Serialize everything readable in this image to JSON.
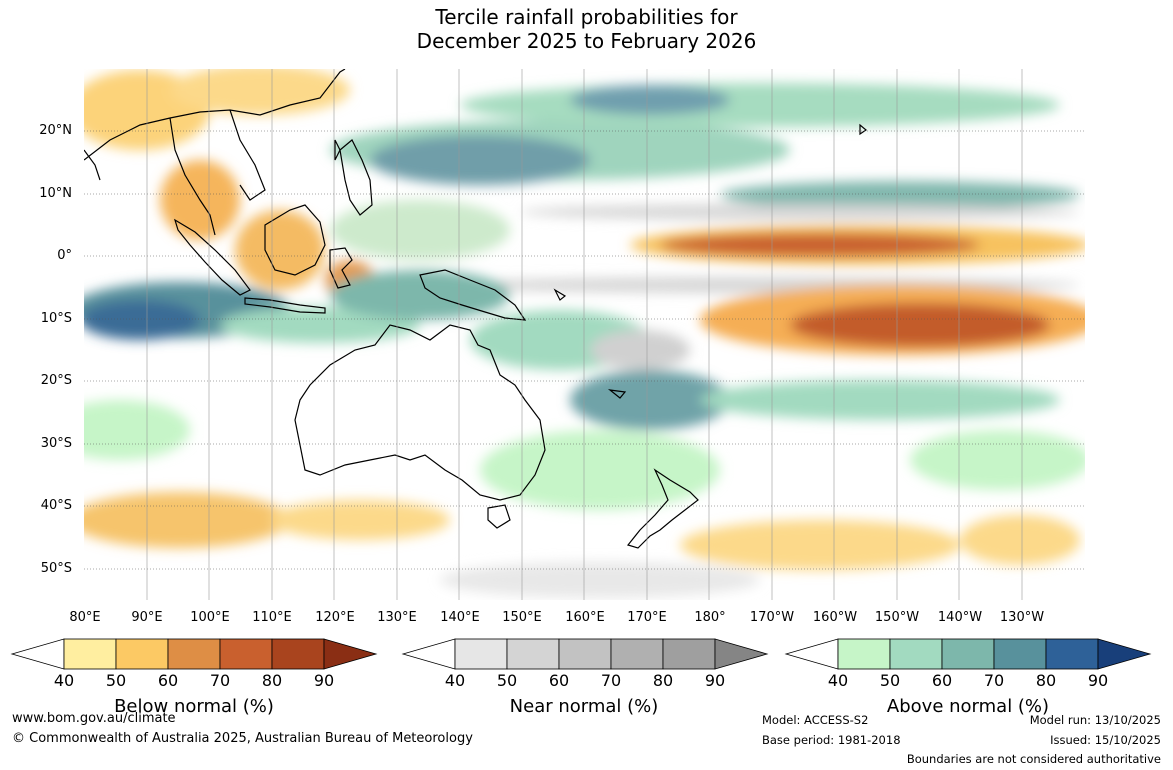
{
  "title": {
    "line1": "Tercile rainfall probabilities for",
    "line2": "December 2025 to February 2026"
  },
  "map": {
    "lat_labels": [
      "20°N",
      "10°N",
      "0°",
      "10°S",
      "20°S",
      "30°S",
      "40°S",
      "50°S"
    ],
    "lon_labels": [
      "80°E",
      "90°E",
      "100°E",
      "110°E",
      "120°E",
      "130°E",
      "140°E",
      "150°E",
      "160°E",
      "170°E",
      "180°",
      "170°W",
      "160°W",
      "150°W",
      "140°W",
      "130°W"
    ]
  },
  "legends": [
    {
      "label": "Below normal (%)",
      "ticks": [
        "40",
        "50",
        "60",
        "70",
        "80",
        "90"
      ],
      "colors": [
        "#ffeea0",
        "#fcc964",
        "#de8e45",
        "#c9602e",
        "#a9441e",
        "#8a2e14"
      ]
    },
    {
      "label": "Near normal (%)",
      "ticks": [
        "40",
        "50",
        "60",
        "70",
        "80",
        "90"
      ],
      "colors": [
        "#e6e6e6",
        "#d4d4d4",
        "#c2c2c2",
        "#b0b0b0",
        "#9f9f9f",
        "#858585"
      ]
    },
    {
      "label": "Above normal (%)",
      "ticks": [
        "40",
        "50",
        "60",
        "70",
        "80",
        "90"
      ],
      "colors": [
        "#c6f5c8",
        "#a2dac0",
        "#7db7ab",
        "#58919c",
        "#2e6198",
        "#183f7a"
      ]
    }
  ],
  "footer": {
    "website": "www.bom.gov.au/climate",
    "copyright": "© Commonwealth of Australia 2025, Australian Bureau of Meteorology",
    "model": "Model: ACCESS-S2",
    "base_period": "Base period: 1981-2018",
    "model_run": "Model run: 13/10/2025",
    "issued": "Issued: 15/10/2025",
    "boundaries": "Boundaries are not considered authoritative"
  }
}
